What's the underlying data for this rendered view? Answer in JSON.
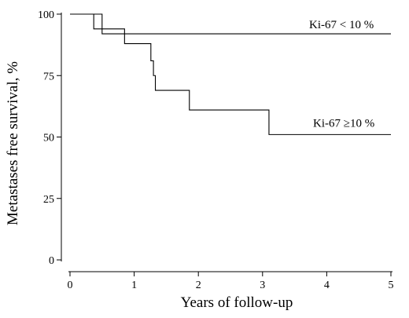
{
  "chart_data": {
    "type": "line",
    "title": "",
    "xlabel": "Years of follow-up",
    "ylabel": "Metastases free survival, %",
    "xlim": [
      0,
      5
    ],
    "ylim": [
      0,
      100
    ],
    "x_ticks": [
      "0",
      "1",
      "2",
      "3",
      "4",
      "5"
    ],
    "y_ticks": [
      "0",
      "25",
      "50",
      "75",
      "100"
    ],
    "grid": false,
    "series": [
      {
        "name": "Ki-67 < 10 %",
        "step": true,
        "x": [
          0,
          0.37,
          0.5,
          5.0
        ],
        "y": [
          100,
          100,
          92,
          92
        ]
      },
      {
        "name": "Ki-67 ≥10 %",
        "step": true,
        "x": [
          0,
          0.37,
          0.5,
          0.85,
          1.26,
          1.3,
          1.33,
          1.86,
          3.1,
          5.0
        ],
        "y": [
          100,
          94,
          94,
          88,
          81,
          75,
          69,
          61,
          51,
          51
        ]
      }
    ]
  }
}
